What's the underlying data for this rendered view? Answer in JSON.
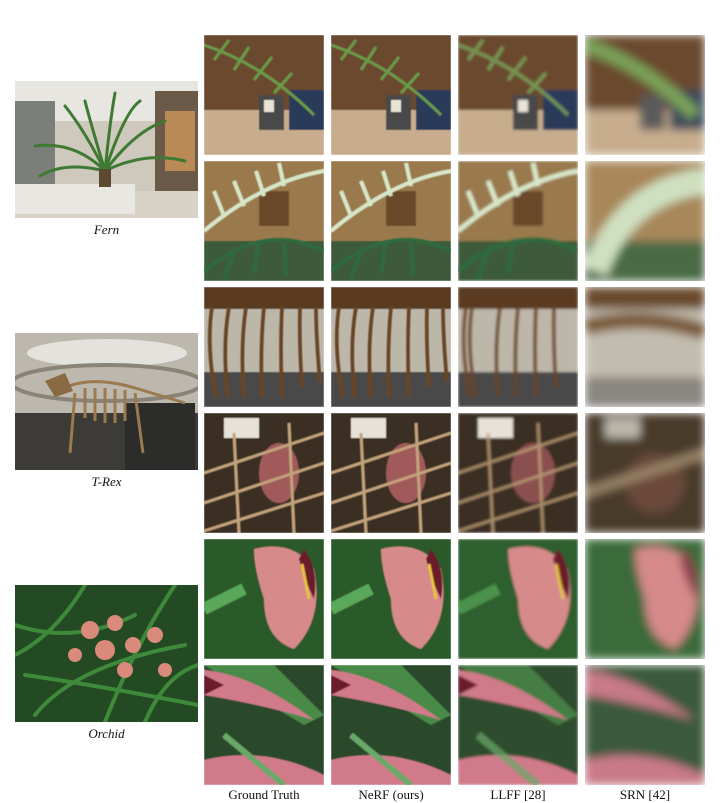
{
  "scenes": [
    {
      "name": "Fern"
    },
    {
      "name": "T-Rex"
    },
    {
      "name": "Orchid"
    }
  ],
  "columns": [
    {
      "label": "Ground Truth"
    },
    {
      "label": "NeRF (ours)"
    },
    {
      "label": "LLFF [28]"
    },
    {
      "label": "SRN [42]"
    }
  ]
}
